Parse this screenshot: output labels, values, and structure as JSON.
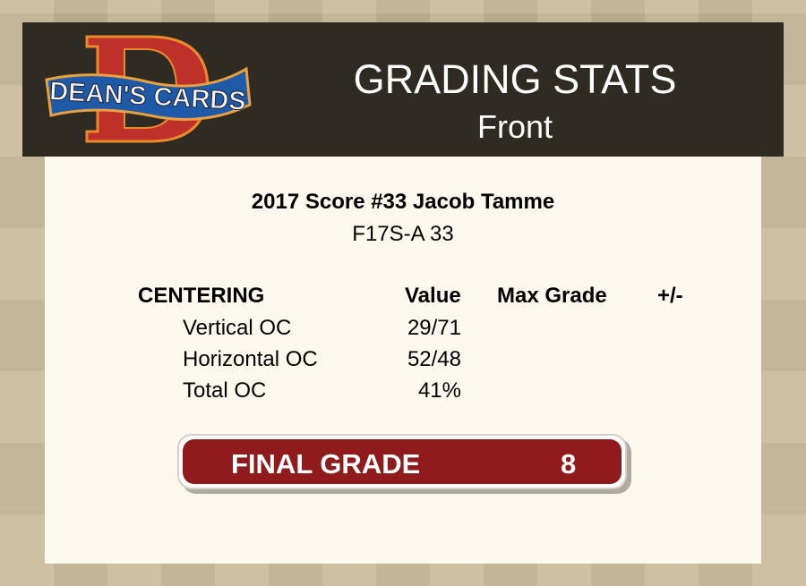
{
  "header": {
    "logo_text": "DEAN'S CARDS",
    "title": "GRADING STATS",
    "subtitle": "Front"
  },
  "card": {
    "name": "2017 Score #33 Jacob Tamme",
    "code": "F17S-A 33"
  },
  "centering": {
    "headers": {
      "section": "CENTERING",
      "value": "Value",
      "max_grade": "Max Grade",
      "plus_minus": "+/-"
    },
    "rows": [
      {
        "label": "Vertical OC",
        "value": "29/71"
      },
      {
        "label": "Horizontal OC",
        "value": "52/48"
      },
      {
        "label": "Total OC",
        "value": "41%"
      }
    ]
  },
  "final_grade": {
    "label": "FINAL GRADE",
    "value": "8"
  },
  "colors": {
    "header_bg": "#2f2a22",
    "panel_bg": "#fcf8ee",
    "grade_bg": "#8f1b1d"
  }
}
